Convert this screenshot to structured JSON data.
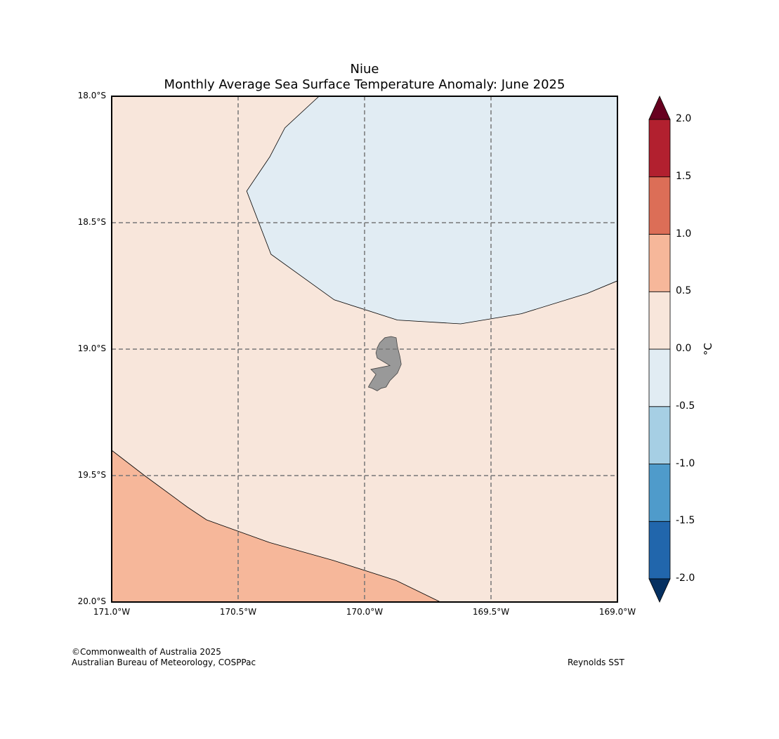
{
  "title_line1": "Niue",
  "title_line2": "Monthly Average Sea Surface Temperature Anomaly: June 2025",
  "map": {
    "lon_range": [
      -171.0,
      -169.0
    ],
    "lat_range": [
      -20.0,
      -18.0
    ],
    "gridlines": "dashed",
    "lon_ticks": [
      {
        "value": -171.0,
        "label": "171.0°W"
      },
      {
        "value": -170.5,
        "label": "170.5°W"
      },
      {
        "value": -170.0,
        "label": "170.0°W"
      },
      {
        "value": -169.5,
        "label": "169.5°W"
      },
      {
        "value": -169.0,
        "label": "169.0°W"
      }
    ],
    "lat_ticks": [
      {
        "value": -18.0,
        "label": "18.0°S"
      },
      {
        "value": -18.5,
        "label": "18.5°S"
      },
      {
        "value": -19.0,
        "label": "19.0°S"
      },
      {
        "value": -19.5,
        "label": "19.5°S"
      },
      {
        "value": -20.0,
        "label": "20.0°S"
      }
    ],
    "regions": [
      {
        "name": "anomaly 0.0 to 0.5",
        "color": "#f8e6db",
        "outline": [
          [
            -171.0,
            -18.0
          ],
          [
            -169.0,
            -18.0
          ],
          [
            -169.0,
            -20.0
          ],
          [
            -171.0,
            -20.0
          ]
        ]
      },
      {
        "name": "anomaly -0.5 to 0.0",
        "color": "#e1ecf3",
        "outline": [
          [
            -170.18,
            -18.0
          ],
          [
            -169.0,
            -18.0
          ],
          [
            -169.0,
            -18.73
          ],
          [
            -169.12,
            -18.78
          ],
          [
            -169.38,
            -18.86
          ],
          [
            -169.62,
            -18.9
          ],
          [
            -169.87,
            -18.885
          ],
          [
            -170.12,
            -18.805
          ],
          [
            -170.37,
            -18.625
          ],
          [
            -170.466,
            -18.375
          ],
          [
            -170.375,
            -18.24
          ],
          [
            -170.315,
            -18.125
          ]
        ]
      },
      {
        "name": "anomaly 0.5 to 1.0",
        "color": "#f6b79a",
        "outline": [
          [
            -171.0,
            -19.4
          ],
          [
            -170.87,
            -19.5
          ],
          [
            -170.7,
            -19.625
          ],
          [
            -170.625,
            -19.675
          ],
          [
            -170.375,
            -19.765
          ],
          [
            -170.125,
            -19.835
          ],
          [
            -169.875,
            -19.915
          ],
          [
            -169.7,
            -20.0
          ],
          [
            -171.0,
            -20.0
          ]
        ]
      }
    ],
    "land": {
      "name": "Niue",
      "color": "#999999",
      "outline": [
        [
          -169.94,
          -18.975
        ],
        [
          -169.92,
          -18.955
        ],
        [
          -169.895,
          -18.95
        ],
        [
          -169.875,
          -18.955
        ],
        [
          -169.87,
          -18.99
        ],
        [
          -169.865,
          -19.01
        ],
        [
          -169.86,
          -19.03
        ],
        [
          -169.855,
          -19.06
        ],
        [
          -169.87,
          -19.095
        ],
        [
          -169.9,
          -19.125
        ],
        [
          -169.915,
          -19.15
        ],
        [
          -169.935,
          -19.155
        ],
        [
          -169.95,
          -19.165
        ],
        [
          -169.97,
          -19.155
        ],
        [
          -169.985,
          -19.15
        ],
        [
          -169.98,
          -19.14
        ],
        [
          -169.955,
          -19.1
        ],
        [
          -169.975,
          -19.08
        ],
        [
          -169.9,
          -19.065
        ],
        [
          -169.95,
          -19.035
        ],
        [
          -169.955,
          -19.015
        ],
        [
          -169.95,
          -18.995
        ]
      ]
    }
  },
  "colorbar": {
    "unit": "°C",
    "levels": [
      -2.0,
      -1.5,
      -1.0,
      -0.5,
      0.0,
      0.5,
      1.0,
      1.5,
      2.0
    ],
    "colors": [
      "#2166ac",
      "#4f9bcb",
      "#a6cfe4",
      "#e1ecf3",
      "#f8e6db",
      "#f6b79a",
      "#dc6e57",
      "#b2202f"
    ],
    "under_color": "#053061",
    "over_color": "#67001f",
    "tick_labels": [
      "-2.0",
      "-1.5",
      "-1.0",
      "-0.5",
      "0.0",
      "0.5",
      "1.0",
      "1.5",
      "2.0"
    ]
  },
  "footer": {
    "copyright": "©Commonwealth of Australia 2025",
    "agency": "Australian Bureau of Meteorology, COSPPac",
    "source": "Reynolds SST"
  }
}
